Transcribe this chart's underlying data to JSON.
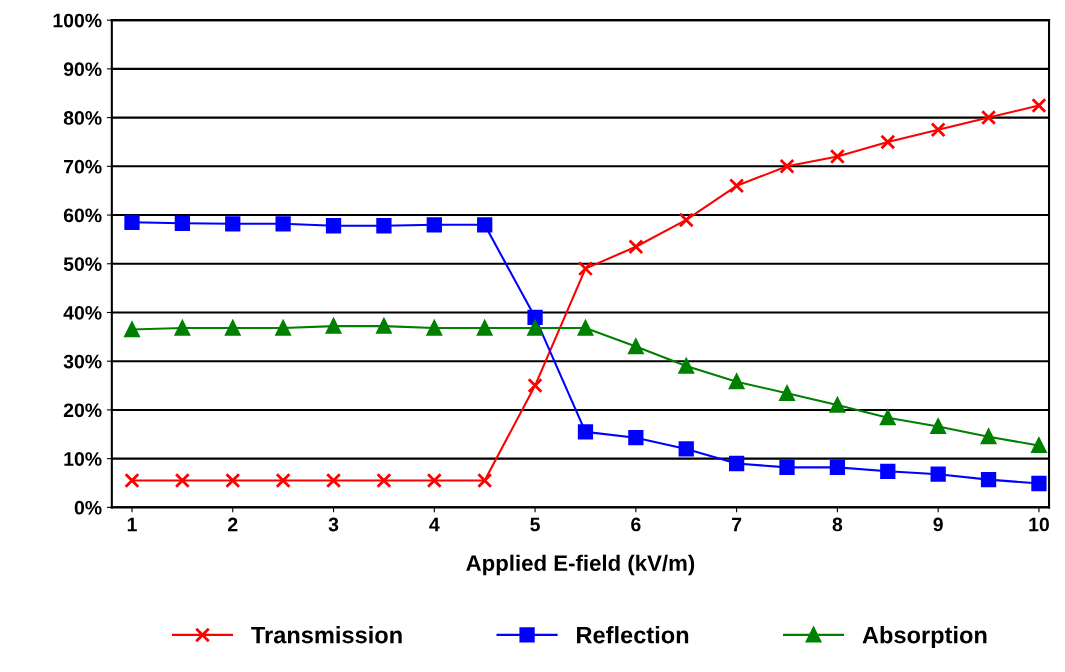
{
  "chart_data": {
    "type": "line",
    "xlabel": "Applied E-field (kV/m)",
    "x": [
      1,
      1.5,
      2,
      2.5,
      3,
      3.5,
      4,
      4.5,
      5,
      5.5,
      6,
      6.5,
      7,
      7.5,
      8,
      8.5,
      9,
      9.5,
      10
    ],
    "series": [
      {
        "name": "Transmission",
        "color": "#ff0000",
        "marker": "cross",
        "values": [
          5.5,
          5.5,
          5.5,
          5.5,
          5.5,
          5.5,
          5.5,
          5.5,
          25,
          49,
          53.5,
          59,
          66,
          70,
          72,
          75,
          77.5,
          80,
          82.5
        ]
      },
      {
        "name": "Reflection",
        "color": "#0000ff",
        "marker": "square",
        "values": [
          58.5,
          58.3,
          58.2,
          58.2,
          57.8,
          57.8,
          58,
          58,
          39,
          15.5,
          14.3,
          12,
          9,
          8.2,
          8.2,
          7.4,
          6.8,
          5.7,
          4.9
        ]
      },
      {
        "name": "Absorption",
        "color": "#008000",
        "marker": "triangle",
        "values": [
          36.5,
          36.8,
          36.8,
          36.8,
          37.2,
          37.2,
          36.8,
          36.8,
          36.8,
          36.8,
          33,
          29,
          25.8,
          23.4,
          21,
          18.4,
          16.6,
          14.5,
          12.7
        ]
      }
    ],
    "xlim": [
      0.8,
      10.1
    ],
    "xticks": [
      1,
      2,
      3,
      4,
      5,
      6,
      7,
      8,
      9,
      10
    ],
    "ylim": [
      0,
      100
    ],
    "yticks": [
      {
        "value": 0,
        "label": "0%"
      },
      {
        "value": 10,
        "label": "10%"
      },
      {
        "value": 20,
        "label": "20%"
      },
      {
        "value": 30,
        "label": "30%"
      },
      {
        "value": 40,
        "label": "40%"
      },
      {
        "value": 50,
        "label": "50%"
      },
      {
        "value": 60,
        "label": "60%"
      },
      {
        "value": 70,
        "label": "70%"
      },
      {
        "value": 80,
        "label": "80%"
      },
      {
        "value": 90,
        "label": "90%"
      },
      {
        "value": 100,
        "label": "100%"
      }
    ],
    "grid": "y",
    "legend": "bottom"
  }
}
